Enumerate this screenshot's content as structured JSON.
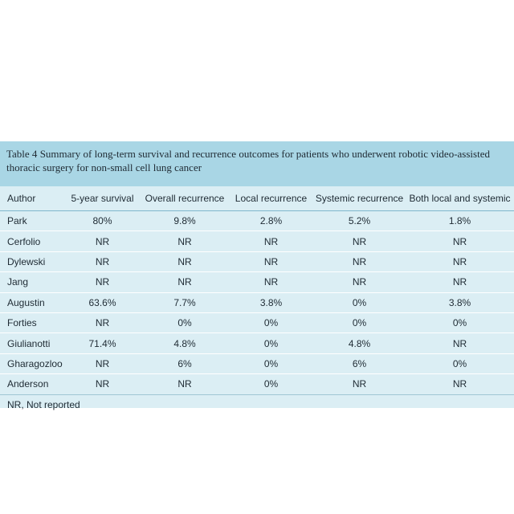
{
  "caption": {
    "label": "Table 4",
    "text": "Summary of long-term survival and recurrence outcomes for patients who underwent robotic video-assisted thoracic surgery for non-small cell lung cancer"
  },
  "table": {
    "headers": [
      "Author",
      "5-year survival",
      "Overall recurrence",
      "Local recurrence",
      "Systemic recurrence",
      "Both local and systemic"
    ],
    "rows": [
      [
        "Park",
        "80%",
        "9.8%",
        "2.8%",
        "5.2%",
        "1.8%"
      ],
      [
        "Cerfolio",
        "NR",
        "NR",
        "NR",
        "NR",
        "NR"
      ],
      [
        "Dylewski",
        "NR",
        "NR",
        "NR",
        "NR",
        "NR"
      ],
      [
        "Jang",
        "NR",
        "NR",
        "NR",
        "NR",
        "NR"
      ],
      [
        "Augustin",
        "63.6%",
        "7.7%",
        "3.8%",
        "0%",
        "3.8%"
      ],
      [
        "Forties",
        "NR",
        "0%",
        "0%",
        "0%",
        "0%"
      ],
      [
        "Giulianotti",
        "71.4%",
        "4.8%",
        "0%",
        "4.8%",
        "NR"
      ],
      [
        "Gharagozloo",
        "NR",
        "6%",
        "0%",
        "6%",
        "0%"
      ],
      [
        "Anderson",
        "NR",
        "NR",
        "0%",
        "NR",
        "NR"
      ]
    ]
  },
  "footnote": "NR, Not reported"
}
